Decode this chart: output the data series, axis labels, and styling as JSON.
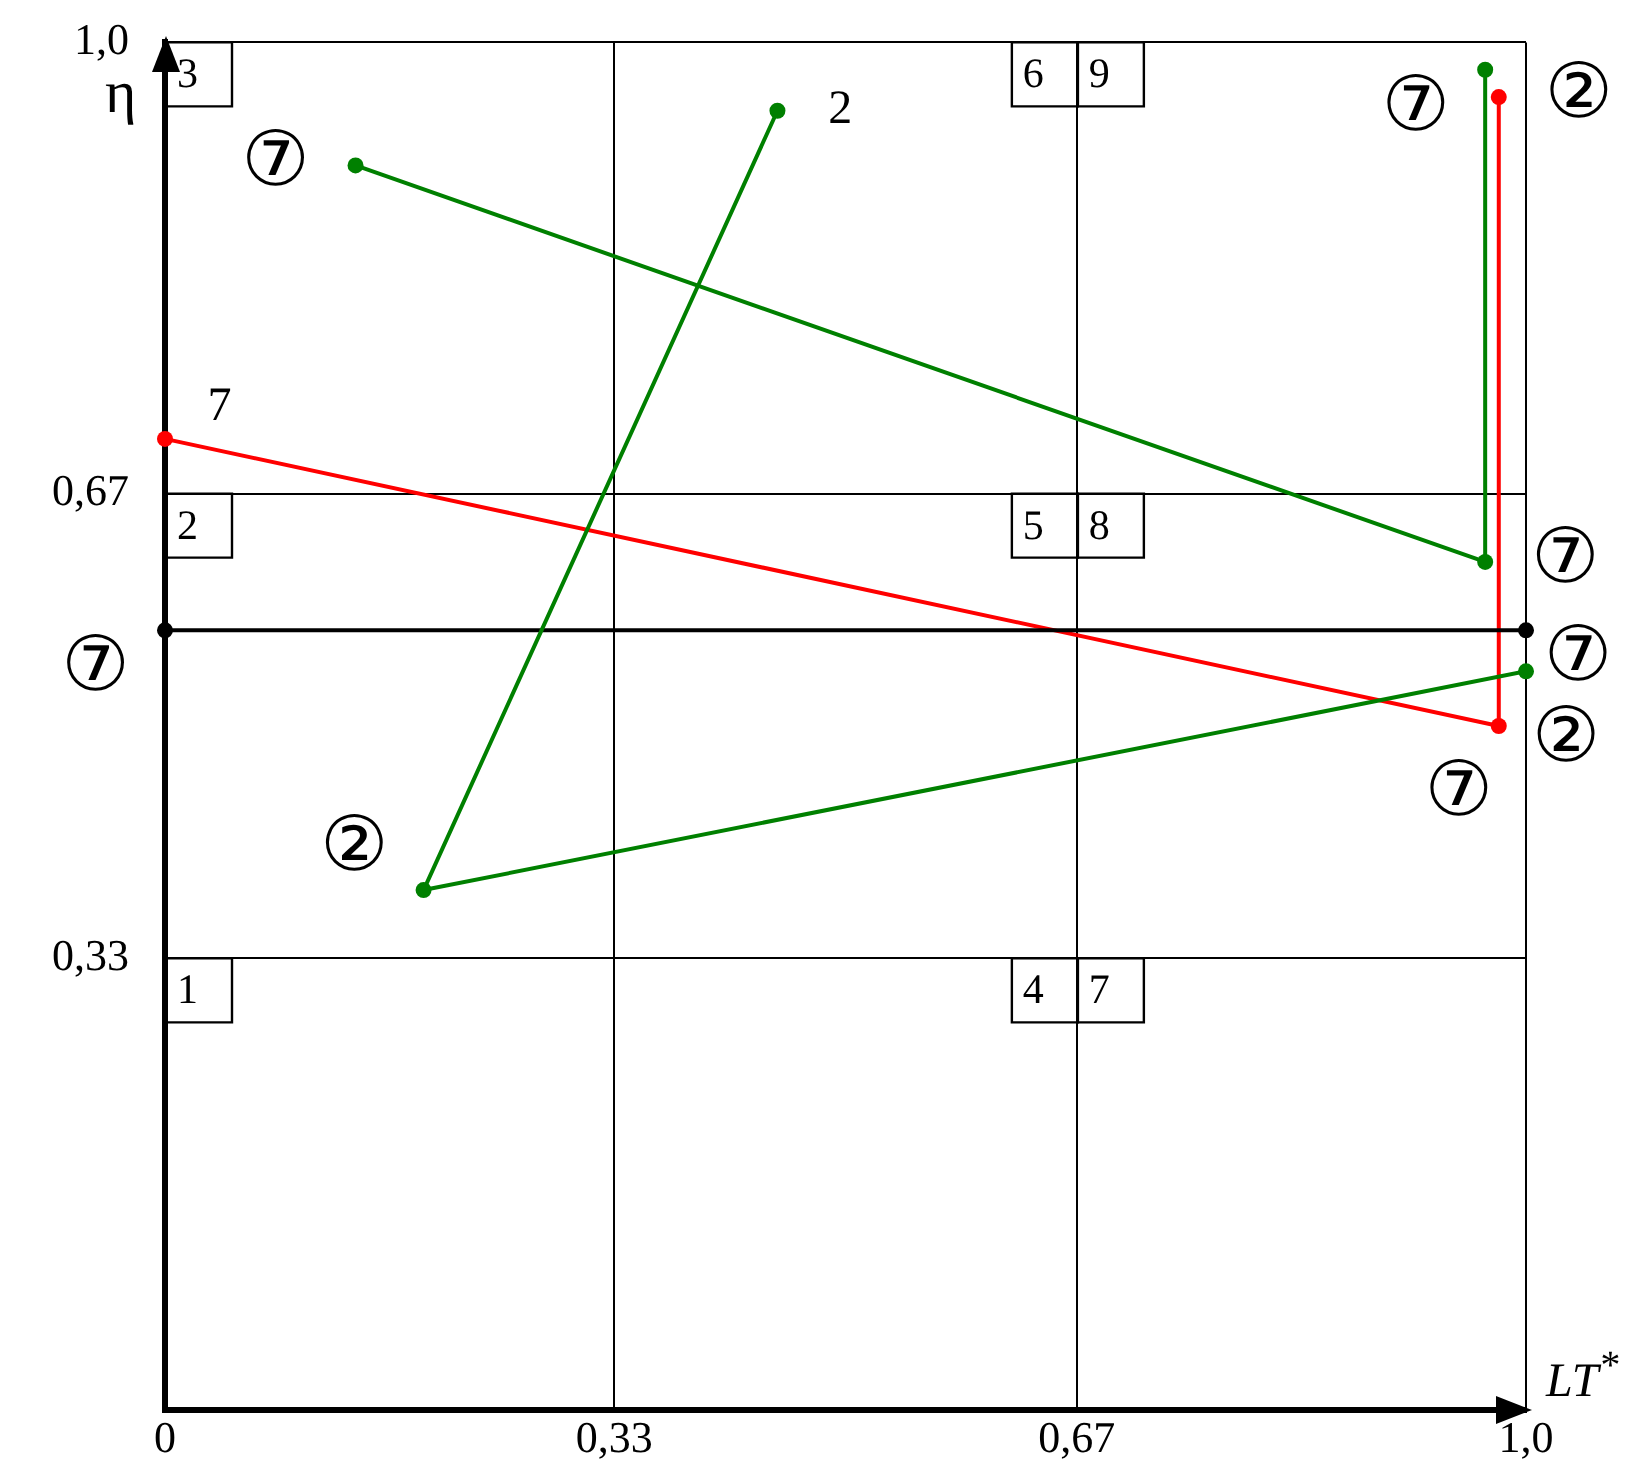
{
  "chart_data": {
    "type": "line",
    "xlabel": "LT$^{*}$",
    "ylabel": "η",
    "xlim": [
      0,
      1
    ],
    "ylim": [
      0,
      1
    ],
    "xticks": [
      0,
      {
        "value": 0.33,
        "label": "0,33"
      },
      {
        "value": 0.67,
        "label": "0,67"
      },
      {
        "value": 1,
        "label": "1,0"
      }
    ],
    "yticks": [
      {
        "value": 0.33,
        "label": "0,33"
      },
      {
        "value": 0.67,
        "label": "0,67"
      },
      {
        "value": 1,
        "label": "1,0"
      }
    ],
    "grid": true,
    "legend": false,
    "marker": "circle",
    "line_style": "solid",
    "series": [
      {
        "color": "#008000",
        "x": [
          0.14,
          0.97,
          0.97
        ],
        "values": [
          0.91,
          0.62,
          0.98
        ]
      },
      {
        "color": "#008000",
        "x": [
          0.45,
          0.19,
          1.0
        ],
        "values": [
          0.95,
          0.38,
          0.54
        ]
      },
      {
        "color": "#000000",
        "x": [
          0,
          1.0
        ],
        "values": [
          0.57,
          0.57
        ]
      },
      {
        "color": "#ff0000",
        "x": [
          0,
          0.98,
          0.98
        ],
        "values": [
          0.71,
          0.5,
          0.96
        ]
      }
    ],
    "annotations": [
      "1",
      "2",
      "3",
      "4",
      "5",
      "6",
      "7",
      "8",
      "9",
      {
        "text": "7",
        "x": 0,
        "y": 0.71
      },
      {
        "text": "2",
        "x": 0.45,
        "y": 0.95
      },
      {
        "text": "⑦",
        "x": 0.14,
        "y": 0.91
      },
      {
        "text": "⑦",
        "x": 0.97,
        "y": 0.98
      },
      {
        "text": "⑦",
        "x": 0.97,
        "y": 0.62
      },
      {
        "text": "②",
        "x": 0.98,
        "y": 0.96
      },
      {
        "text": "⑦",
        "x": 0,
        "y": 0.57
      },
      {
        "text": "⑦",
        "x": 1.0,
        "y": 0.57
      },
      {
        "text": "②",
        "x": 1.0,
        "y": 0.54
      },
      {
        "text": "⑦",
        "x": 0.98,
        "y": 0.5
      },
      {
        "text": "②",
        "x": 0.19,
        "y": 0.38
      }
    ]
  }
}
